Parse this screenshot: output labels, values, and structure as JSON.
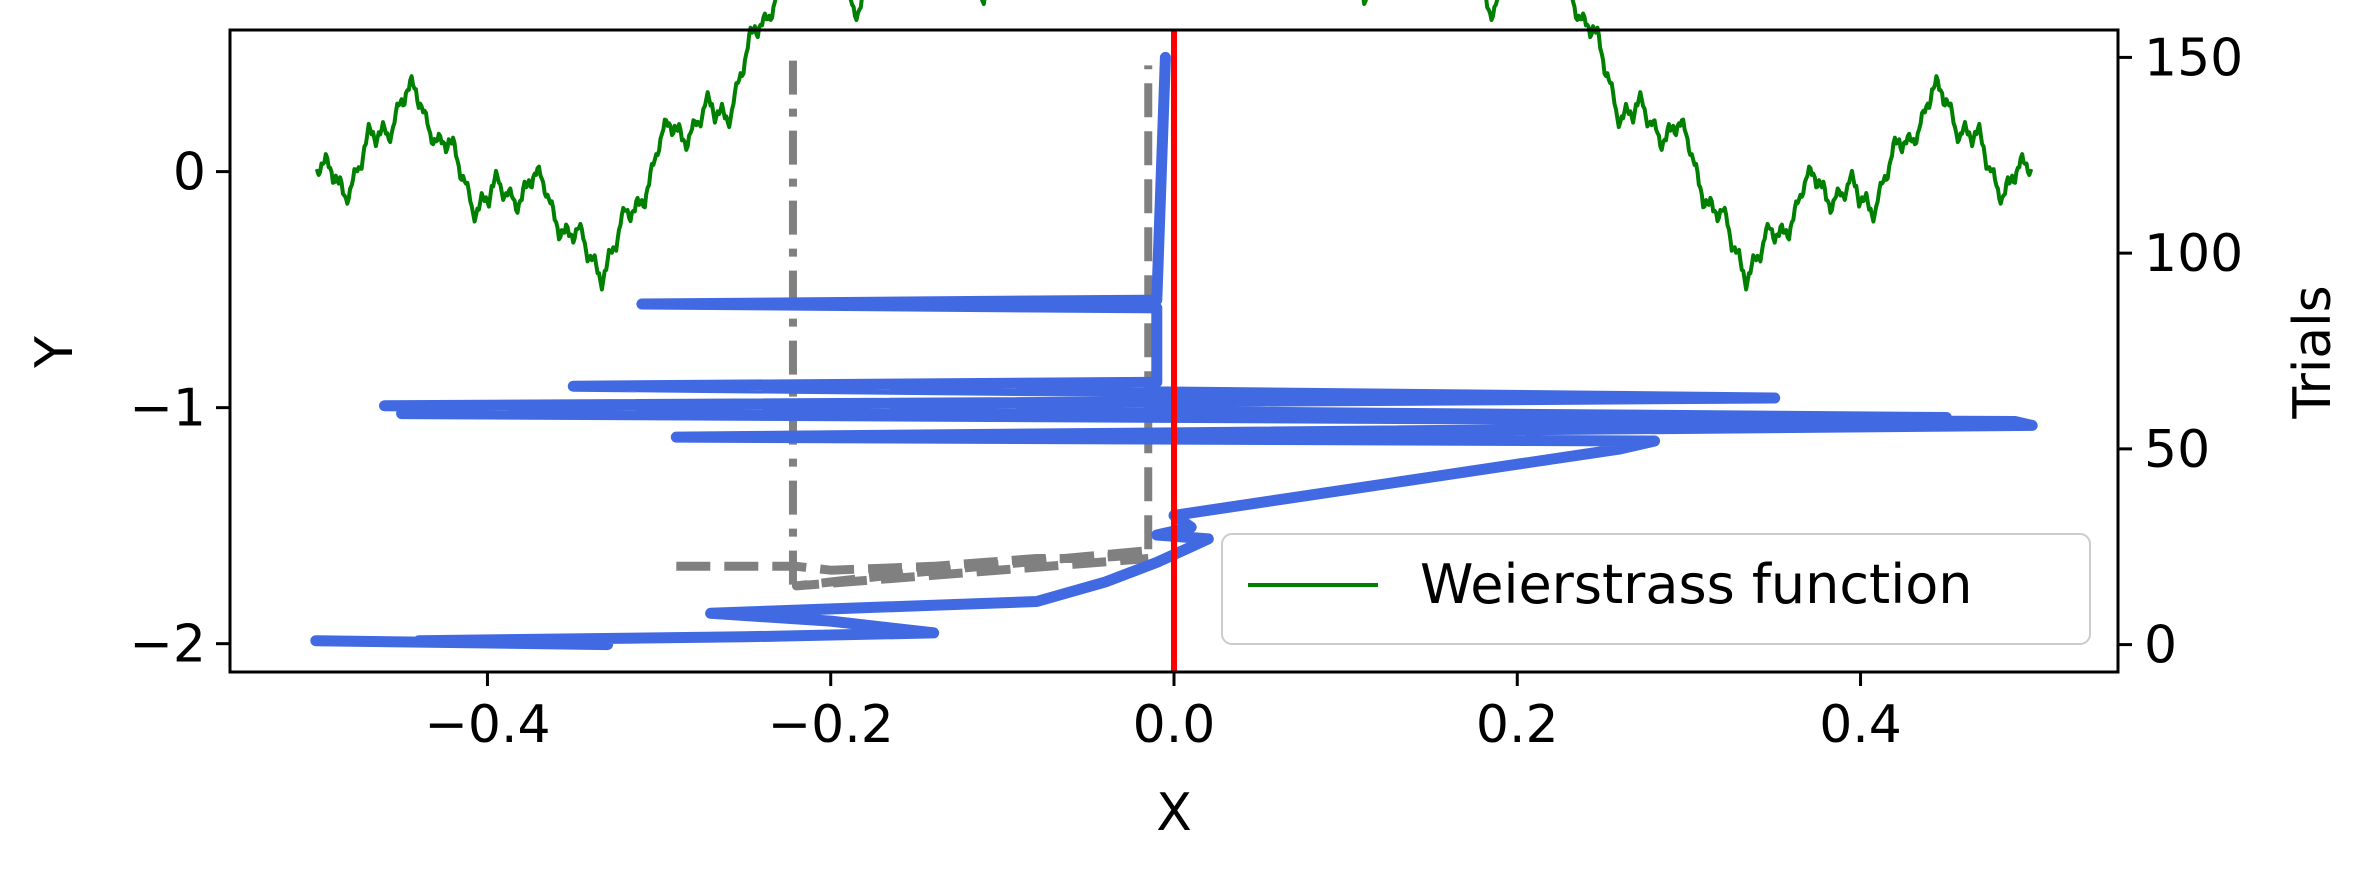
{
  "chart_data": {
    "type": "line",
    "xlabel": "X",
    "ylabel": "Y",
    "y2label": "Trials",
    "xlim": [
      -0.55,
      0.55
    ],
    "ylim": [
      -2.12,
      0.6
    ],
    "y2lim": [
      -7,
      157
    ],
    "x_ticks": [
      {
        "value": -0.4,
        "label": "−0.4"
      },
      {
        "value": -0.2,
        "label": "−0.2"
      },
      {
        "value": 0.0,
        "label": "0.0"
      },
      {
        "value": 0.2,
        "label": "0.2"
      },
      {
        "value": 0.4,
        "label": "0.4"
      }
    ],
    "y_ticks": [
      {
        "value": 0,
        "label": "0"
      },
      {
        "value": -1,
        "label": "−1"
      },
      {
        "value": -2,
        "label": "−2"
      }
    ],
    "y2_ticks": [
      {
        "value": 0,
        "label": "0"
      },
      {
        "value": 50,
        "label": "50"
      },
      {
        "value": 100,
        "label": "100"
      },
      {
        "value": 150,
        "label": "150"
      }
    ],
    "grid": false,
    "legend": {
      "position": "lower-right",
      "entries": [
        {
          "label": "Weierstrass function",
          "color": "#008000"
        }
      ]
    },
    "weierstrass": {
      "color": "#008000",
      "x_range": [
        -0.5,
        0.5
      ],
      "a": 0.5,
      "b": 3,
      "terms": 12,
      "samples": 1200
    },
    "vlines": [
      {
        "x": 0.0,
        "color": "#ff0000",
        "style": "solid",
        "y_from": -2.12,
        "y_to": 0.6
      },
      {
        "x": -0.222,
        "color": "#808080",
        "style": "dashdot",
        "y_from": -1.75,
        "y_to": 0.5
      },
      {
        "x": -0.015,
        "color": "#808080",
        "style": "dashed",
        "y_from": -1.6,
        "y_to": 0.45
      }
    ],
    "search_trace_gray": {
      "color": "#808080",
      "style": "dashed",
      "points": [
        [
          -0.29,
          20
        ],
        [
          -0.22,
          20
        ],
        [
          -0.2,
          19
        ],
        [
          -0.14,
          20
        ],
        [
          -0.11,
          21
        ],
        [
          -0.08,
          22
        ],
        [
          -0.05,
          22
        ],
        [
          -0.02,
          23
        ],
        [
          -0.015,
          24
        ],
        [
          -0.16,
          18
        ],
        [
          -0.2,
          16
        ],
        [
          -0.22,
          15
        ],
        [
          -0.015,
          22
        ]
      ]
    },
    "search_trace_blue": {
      "color": "#4169e1",
      "x_axis": "X",
      "y_axis": "Trials",
      "points": [
        [
          -0.5,
          1
        ],
        [
          -0.33,
          0
        ],
        [
          -0.44,
          1
        ],
        [
          -0.25,
          2
        ],
        [
          -0.14,
          3
        ],
        [
          -0.2,
          6
        ],
        [
          -0.27,
          8
        ],
        [
          -0.08,
          11
        ],
        [
          -0.04,
          16
        ],
        [
          -0.01,
          21
        ],
        [
          0.01,
          25
        ],
        [
          0.02,
          27
        ],
        [
          -0.01,
          28
        ],
        [
          0.01,
          30
        ],
        [
          0.0,
          33
        ],
        [
          0.26,
          50
        ],
        [
          0.28,
          52
        ],
        [
          -0.29,
          53
        ],
        [
          0.5,
          56
        ],
        [
          0.49,
          57
        ],
        [
          -0.45,
          59
        ],
        [
          0.45,
          58
        ],
        [
          -0.46,
          61
        ],
        [
          -0.01,
          62
        ],
        [
          0.35,
          63
        ],
        [
          -0.35,
          66
        ],
        [
          -0.01,
          67
        ],
        [
          -0.01,
          86
        ],
        [
          -0.31,
          87
        ],
        [
          -0.01,
          88
        ],
        [
          -0.005,
          150
        ]
      ]
    }
  }
}
